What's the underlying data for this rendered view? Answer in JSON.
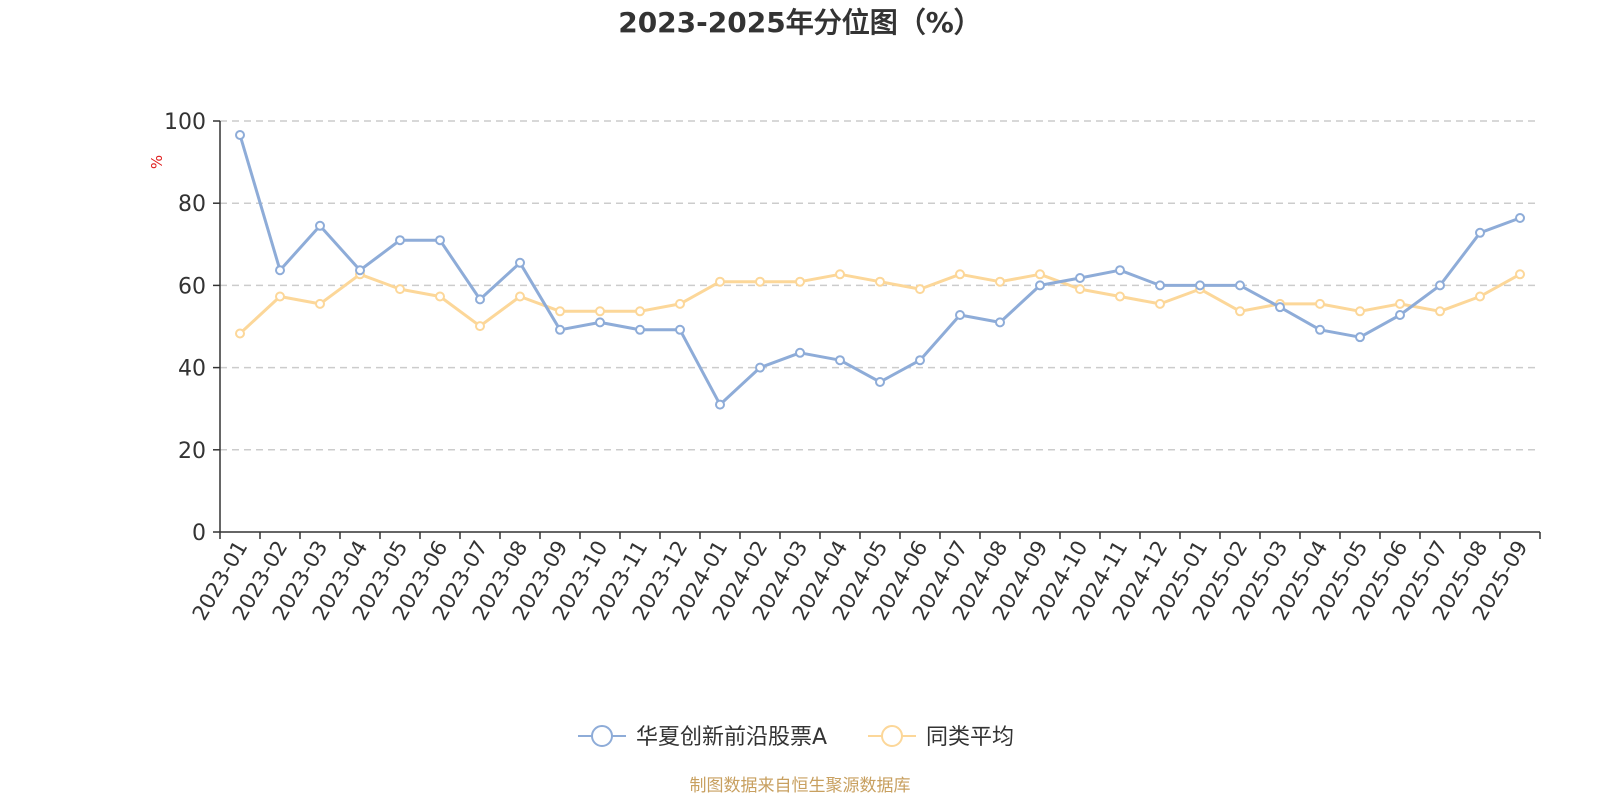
{
  "chart_data": {
    "type": "line",
    "title": "2023-2025年分位图（%）",
    "ylabel": "%",
    "xlabel": "",
    "ylim": [
      0,
      100
    ],
    "yticks": [
      "0",
      "20",
      "40",
      "60",
      "80",
      "100"
    ],
    "grid": "horizontal-dashed",
    "legend_position": "bottom-center",
    "categories": [
      "2023-01",
      "2023-02",
      "2023-03",
      "2023-04",
      "2023-05",
      "2023-06",
      "2023-07",
      "2023-08",
      "2023-09",
      "2023-10",
      "2023-11",
      "2023-12",
      "2024-01",
      "2024-02",
      "2024-03",
      "2024-04",
      "2024-05",
      "2024-06",
      "2024-07",
      "2024-08",
      "2024-09",
      "2024-10",
      "2024-11",
      "2024-12",
      "2025-01",
      "2025-02",
      "2025-03",
      "2025-04",
      "2025-05",
      "2025-06",
      "2025-07",
      "2025-08",
      "2025-09"
    ],
    "series": [
      {
        "name": "华夏创新前沿股票A",
        "color": "#8eacd8",
        "values": [
          96.6,
          63.7,
          74.5,
          63.7,
          71.0,
          71.0,
          56.6,
          65.5,
          49.2,
          51.0,
          49.2,
          49.2,
          31.0,
          40.0,
          43.6,
          41.8,
          36.5,
          41.8,
          52.8,
          51.0,
          60.0,
          61.8,
          63.7,
          60.0,
          60.0,
          60.0,
          54.7,
          49.2,
          47.4,
          52.8,
          60.0,
          72.8,
          76.4
        ]
      },
      {
        "name": "同类平均",
        "color": "#fcd799",
        "values": [
          48.3,
          57.3,
          55.5,
          62.7,
          59.1,
          57.3,
          50.1,
          57.3,
          53.7,
          53.7,
          53.7,
          55.5,
          60.9,
          60.9,
          60.9,
          62.7,
          60.9,
          59.1,
          62.7,
          60.9,
          62.7,
          59.1,
          57.3,
          55.5,
          59.1,
          53.7,
          55.5,
          55.5,
          53.7,
          55.5,
          53.7,
          57.3,
          62.7
        ]
      }
    ]
  },
  "footer": {
    "source": "制图数据来自恒生聚源数据库"
  }
}
